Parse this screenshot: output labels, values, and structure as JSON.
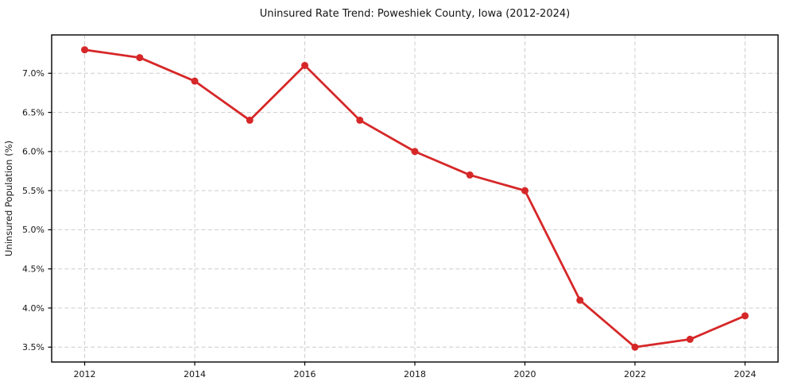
{
  "chart_data": {
    "type": "line",
    "title": "Uninsured Rate Trend: Poweshiek County, Iowa (2012-2024)",
    "xlabel": "",
    "ylabel": "Uninsured Population (%)",
    "x": [
      2012,
      2013,
      2014,
      2015,
      2016,
      2017,
      2018,
      2019,
      2020,
      2021,
      2022,
      2023,
      2024
    ],
    "values": [
      7.3,
      7.2,
      6.9,
      6.4,
      7.1,
      6.4,
      6.0,
      5.7,
      5.5,
      4.1,
      3.5,
      3.6,
      3.9
    ],
    "xlim": [
      2011.4,
      2024.6
    ],
    "ylim": [
      3.31,
      7.49
    ],
    "xticks": {
      "values": [
        2012,
        2014,
        2016,
        2018,
        2020,
        2022,
        2024
      ],
      "labels": [
        "2012",
        "2014",
        "2016",
        "2018",
        "2020",
        "2022",
        "2024"
      ]
    },
    "yticks": {
      "values": [
        3.5,
        4.0,
        4.5,
        5.0,
        5.5,
        6.0,
        6.5,
        7.0
      ],
      "labels": [
        "3.5%",
        "4.0%",
        "4.5%",
        "5.0%",
        "5.5%",
        "6.0%",
        "6.5%",
        "7.0%"
      ]
    },
    "grid": "both-dashed",
    "legend": false,
    "marker": "circle",
    "colors": {
      "line": "#d62728",
      "grid": "#cccccc",
      "axis": "#000000",
      "background": "#ffffff",
      "text": "#141414"
    }
  }
}
